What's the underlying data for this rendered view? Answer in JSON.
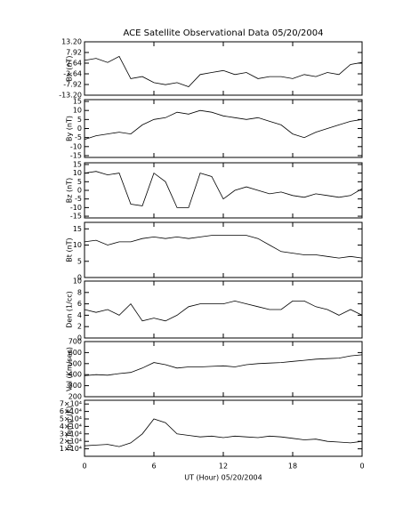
{
  "chart_data": [
    {
      "type": "line",
      "title": "ACE Satellite Observational Data   05/20/2004",
      "ylabel": "Bx (nT)",
      "color": "#000000",
      "x": [
        0,
        1,
        2,
        3,
        4,
        5,
        6,
        7,
        8,
        9,
        10,
        11,
        12,
        13,
        14,
        15,
        16,
        17,
        18,
        19,
        20,
        21,
        22,
        23,
        24
      ],
      "values": [
        4,
        5,
        3,
        6,
        -5,
        -4,
        -7,
        -8,
        -7,
        -9,
        -3,
        -2,
        -1,
        -3,
        -2,
        -5,
        -4,
        -4,
        -5,
        -3,
        -4,
        -2,
        -3,
        2,
        3
      ],
      "xlim": [
        0,
        24
      ],
      "xticks": [
        0,
        6,
        12,
        18,
        24
      ],
      "ylim": [
        -13.2,
        13.2
      ],
      "yticks": [
        {
          "value": 13.2,
          "label": "13.20"
        },
        7.92,
        2.64,
        -2.64,
        -7.92,
        {
          "value": -13.2,
          "label": "-13.20"
        }
      ]
    },
    {
      "type": "line",
      "ylabel": "By (nT)",
      "color": "#000000",
      "x": [
        0,
        1,
        2,
        3,
        4,
        5,
        6,
        7,
        8,
        9,
        10,
        11,
        12,
        13,
        14,
        15,
        16,
        17,
        18,
        19,
        20,
        21,
        22,
        23,
        24
      ],
      "values": [
        -6,
        -4,
        -3,
        -2,
        -3,
        2,
        5,
        6,
        9,
        8,
        10,
        9,
        7,
        6,
        5,
        6,
        4,
        2,
        -3,
        -5,
        -2,
        0,
        2,
        4,
        5
      ],
      "xlim": [
        0,
        24
      ],
      "xticks": [
        0,
        6,
        12,
        18,
        24
      ],
      "ylim": [
        -16,
        16
      ],
      "yticks": [
        15,
        10,
        5,
        0,
        -5,
        -10,
        -15
      ]
    },
    {
      "type": "line",
      "ylabel": "Bz (nT)",
      "color": "#000000",
      "x": [
        0,
        1,
        2,
        3,
        4,
        5,
        6,
        7,
        8,
        9,
        10,
        11,
        12,
        13,
        14,
        15,
        16,
        17,
        18,
        19,
        20,
        21,
        22,
        23,
        24
      ],
      "values": [
        10,
        11,
        9,
        10,
        -8,
        -9,
        10,
        5,
        -10,
        -10,
        10,
        8,
        -5,
        0,
        2,
        0,
        -2,
        -1,
        -3,
        -4,
        -2,
        -3,
        -4,
        -3,
        1
      ],
      "xlim": [
        0,
        24
      ],
      "xticks": [
        0,
        6,
        12,
        18,
        24
      ],
      "ylim": [
        -16,
        16
      ],
      "yticks": [
        15,
        10,
        5,
        0,
        -5,
        -10,
        -15
      ]
    },
    {
      "type": "line",
      "ylabel": "Bt (nT)",
      "color": "#000000",
      "x": [
        0,
        1,
        2,
        3,
        4,
        5,
        6,
        7,
        8,
        9,
        10,
        11,
        12,
        13,
        14,
        15,
        16,
        17,
        18,
        19,
        20,
        21,
        22,
        23,
        24
      ],
      "values": [
        11,
        11.5,
        10,
        11,
        11,
        12,
        12.5,
        12,
        12.5,
        12,
        12.5,
        13,
        13,
        13,
        13,
        12,
        10,
        8,
        7.5,
        7,
        7,
        6.5,
        6,
        6.5,
        6
      ],
      "xlim": [
        0,
        24
      ],
      "xticks": [
        0,
        6,
        12,
        18,
        24
      ],
      "ylim": [
        0,
        17
      ],
      "yticks": [
        0,
        5,
        10,
        15
      ]
    },
    {
      "type": "line",
      "ylabel": "Den (1/cc)",
      "color": "#000000",
      "x": [
        0,
        1,
        2,
        3,
        4,
        5,
        6,
        7,
        8,
        9,
        10,
        11,
        12,
        13,
        14,
        15,
        16,
        17,
        18,
        19,
        20,
        21,
        22,
        23,
        24
      ],
      "values": [
        5,
        4.5,
        5,
        4,
        6,
        3,
        3.5,
        3,
        4,
        5.5,
        6,
        6,
        6,
        6.5,
        6,
        5.5,
        5,
        5,
        6.5,
        6.5,
        5.5,
        5,
        4,
        5,
        4
      ],
      "xlim": [
        0,
        24
      ],
      "xticks": [
        0,
        6,
        12,
        18,
        24
      ],
      "ylim": [
        0,
        10
      ],
      "yticks": [
        0,
        2,
        4,
        6,
        8,
        10
      ]
    },
    {
      "type": "line",
      "ylabel": "Vel (Km/sec)",
      "color": "#000000",
      "x": [
        0,
        1,
        2,
        3,
        4,
        5,
        6,
        7,
        8,
        9,
        10,
        11,
        12,
        13,
        14,
        15,
        16,
        17,
        18,
        19,
        20,
        21,
        22,
        23,
        24
      ],
      "values": [
        390,
        400,
        395,
        410,
        420,
        460,
        510,
        490,
        460,
        470,
        470,
        475,
        480,
        470,
        490,
        500,
        505,
        510,
        520,
        530,
        540,
        545,
        550,
        570,
        580
      ],
      "xlim": [
        0,
        24
      ],
      "xticks": [
        0,
        6,
        12,
        18,
        24
      ],
      "ylim": [
        200,
        700
      ],
      "yticks": [
        200,
        300,
        400,
        500,
        600,
        700
      ]
    },
    {
      "type": "line",
      "ylabel": "Ion Temp (K)",
      "xlabel": "UT (Hour)   05/20/2004",
      "color": "#000000",
      "x": [
        0,
        1,
        2,
        3,
        4,
        5,
        6,
        7,
        8,
        9,
        10,
        11,
        12,
        13,
        14,
        15,
        16,
        17,
        18,
        19,
        20,
        21,
        22,
        23,
        24
      ],
      "values": [
        14000,
        15000,
        16000,
        13000,
        18000,
        30000,
        50000,
        45000,
        30000,
        28000,
        26000,
        27000,
        25000,
        27000,
        26000,
        25000,
        27000,
        26000,
        24000,
        22000,
        23000,
        20000,
        19000,
        18000,
        20000
      ],
      "xlim": [
        0,
        24
      ],
      "xticks": [
        0,
        6,
        {
          "value": 12,
          "label": "12"
        },
        18,
        {
          "value": 24,
          "label": "0"
        }
      ],
      "ylim": [
        0,
        75000
      ],
      "yticks": [
        {
          "value": 10000,
          "label": "1×10⁴"
        },
        {
          "value": 20000,
          "label": "2×10⁴"
        },
        {
          "value": 30000,
          "label": "3×10⁴"
        },
        {
          "value": 40000,
          "label": "4×10⁴"
        },
        {
          "value": 50000,
          "label": "5×10⁴"
        },
        {
          "value": 60000,
          "label": "6×10⁴"
        },
        {
          "value": 70000,
          "label": "7×10⁴"
        }
      ]
    }
  ]
}
